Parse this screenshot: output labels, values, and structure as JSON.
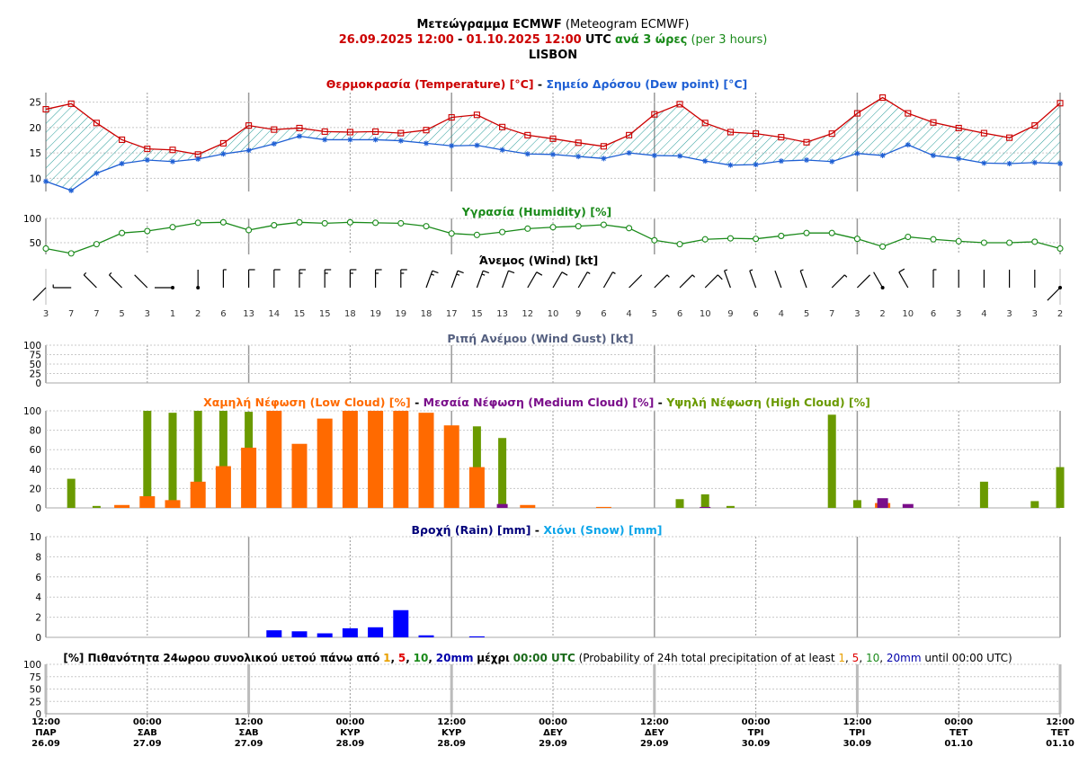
{
  "header": {
    "line1_bold": "Μετεώγραμμα ECMWF",
    "line1_rest": "(Meteogram ECMWF)",
    "period_start": "26.09.2025 12:00",
    "period_sep": "-",
    "period_end": "01.10.2025 12:00",
    "period_utc": "UTC",
    "period_every": "ανά 3 ώρες",
    "period_every_en": "(per 3 hours)",
    "location": "LISBON"
  },
  "colors": {
    "temperature": "#cc0000",
    "dew_point": "#1e5fd4",
    "humidity": "#1a8a1a",
    "low_cloud": "#ff6a00",
    "medium_cloud": "#7a0e8a",
    "high_cloud": "#6a9a00",
    "rain": "#0000ff",
    "snow": "#0ea5e9",
    "gust_title": "#556080",
    "grid_major": "#aaaaaa",
    "grid_minor": "#999999"
  },
  "panels": {
    "temperature": {
      "title_a": "Θερμοκρασία (Temperature) [°C]",
      "sep": "-",
      "title_b": "Σημείο Δρόσου (Dew point) [°C]",
      "yticks": [
        "25",
        "20",
        "15",
        "10"
      ]
    },
    "humidity": {
      "title": "Υγρασία (Humidity) [%]",
      "yticks": [
        "100",
        "50"
      ]
    },
    "wind": {
      "title": "Άνεμος (Wind) [kt]"
    },
    "gust": {
      "title": "Ριπή Ανέμου (Wind Gust) [kt]",
      "yticks": [
        "100",
        "75",
        "50",
        "25",
        "0"
      ]
    },
    "cloud": {
      "title_low": "Χαμηλή Νέφωση (Low Cloud) [%]",
      "title_med": "Μεσαία Νέφωση (Medium Cloud) [%]",
      "title_high": "Υψηλή Νέφωση (High Cloud) [%]",
      "sep": "-",
      "yticks": [
        "100",
        "80",
        "60",
        "40",
        "20",
        "0"
      ]
    },
    "precip": {
      "title_rain": "Βροχή (Rain) [mm]",
      "sep": "-",
      "title_snow": "Χιόνι (Snow) [mm]",
      "yticks": [
        "10",
        "8",
        "6",
        "4",
        "2",
        "0"
      ]
    },
    "prob": {
      "title_gr_a": "[%] Πιθανότητα 24ωρου συνολικού υετού πάνω από",
      "title_gr_b": "μέχρι",
      "title_gr_time": "00:00 UTC",
      "title_en_a": "(Probability of 24h total precipitation of at least",
      "title_en_b": "until 00:00 UTC)",
      "t1": "1",
      "t5": "5",
      "t10": "10",
      "t20": "20mm",
      "comma": ",",
      "yticks": [
        "100",
        "75",
        "50",
        "25",
        "0"
      ]
    }
  },
  "x_axis": {
    "times": [
      "12:00",
      "00:00",
      "12:00",
      "00:00",
      "12:00",
      "00:00",
      "12:00",
      "00:00",
      "12:00",
      "00:00",
      "12:00"
    ],
    "days": [
      "ΠΑΡ",
      "ΣΑΒ",
      "ΣΑΒ",
      "ΚΥΡ",
      "ΚΥΡ",
      "ΔΕΥ",
      "ΔΕΥ",
      "ΤΡΙ",
      "ΤΡΙ",
      "ΤΕΤ",
      "ΤΕΤ"
    ],
    "dates": [
      "26.09",
      "27.09",
      "27.09",
      "28.09",
      "28.09",
      "29.09",
      "29.09",
      "30.09",
      "30.09",
      "01.10",
      "01.10"
    ]
  },
  "chart_data": [
    {
      "type": "line",
      "title": "Θερμοκρασία (Temperature) [°C] - Σημείο Δρόσου (Dew point) [°C]",
      "x_step_hours": 3,
      "ylim": [
        8,
        26
      ],
      "series": [
        {
          "name": "Θερμοκρασία (Temperature) [°C]",
          "values": [
            23.6,
            24.7,
            20.9,
            17.6,
            15.8,
            15.6,
            14.7,
            16.9,
            20.4,
            19.6,
            19.9,
            19.2,
            19.1,
            19.2,
            18.9,
            19.5,
            22.0,
            22.5,
            20.1,
            18.5,
            17.8,
            17.0,
            16.3,
            18.5,
            22.6,
            24.6,
            20.9,
            19.1,
            18.8,
            18.1,
            17.1,
            18.8,
            22.8,
            25.9,
            22.8,
            21.0,
            19.9,
            18.9,
            18.0,
            20.4,
            24.8
          ]
        },
        {
          "name": "Σημείο Δρόσου (Dew point) [°C]",
          "values": [
            9.4,
            7.6,
            11.0,
            12.9,
            13.6,
            13.3,
            13.8,
            14.8,
            15.5,
            16.8,
            18.3,
            17.6,
            17.6,
            17.6,
            17.4,
            16.9,
            16.4,
            16.5,
            15.6,
            14.8,
            14.7,
            14.3,
            13.9,
            15.0,
            14.5,
            14.4,
            13.4,
            12.6,
            12.7,
            13.4,
            13.6,
            13.3,
            14.9,
            14.5,
            16.6,
            14.5,
            13.9,
            13.0,
            12.9,
            13.1,
            12.9
          ]
        }
      ]
    },
    {
      "type": "line",
      "title": "Υγρασία (Humidity) [%]",
      "ylim": [
        20,
        100
      ],
      "series": [
        {
          "name": "Υγρασία (Humidity) [%]",
          "values": [
            38,
            28,
            47,
            70,
            74,
            82,
            91,
            92,
            76,
            86,
            92,
            90,
            92,
            91,
            90,
            84,
            69,
            66,
            72,
            79,
            82,
            84,
            87,
            80,
            55,
            47,
            57,
            59,
            58,
            64,
            70,
            70,
            58,
            42,
            62,
            57,
            53,
            50,
            50,
            52,
            38
          ]
        }
      ]
    },
    {
      "type": "table",
      "title": "Άνεμος (Wind) [kt]",
      "speeds": [
        3,
        7,
        7,
        5,
        3,
        1,
        2,
        6,
        13,
        14,
        15,
        15,
        18,
        19,
        19,
        18,
        17,
        15,
        13,
        12,
        10,
        9,
        6,
        4,
        5,
        6,
        10,
        9,
        6,
        4,
        5,
        7,
        3,
        2,
        10,
        6,
        3,
        4,
        3,
        3,
        2
      ],
      "directions_deg": [
        225,
        270,
        315,
        315,
        315,
        270,
        0,
        0,
        0,
        0,
        0,
        0,
        0,
        0,
        0,
        20,
        20,
        20,
        20,
        30,
        30,
        30,
        30,
        45,
        45,
        45,
        45,
        340,
        340,
        340,
        340,
        45,
        45,
        330,
        330,
        0,
        0,
        0,
        0,
        0,
        225
      ]
    },
    {
      "type": "bar",
      "title": "Ριπή Ανέμου (Wind Gust) [kt]",
      "ylim": [
        0,
        100
      ],
      "values": []
    },
    {
      "type": "bar",
      "title": "Χαμηλή Νέφωση (Low Cloud) [%] - Μεσαία Νέφωση (Medium Cloud) [%] - Υψηλή Νέφωση (High Cloud) [%]",
      "ylim": [
        0,
        100
      ],
      "series": [
        {
          "name": "Χαμηλή Νέφωση (Low Cloud) [%]",
          "values": [
            0,
            0,
            0,
            3,
            12,
            8,
            27,
            43,
            62,
            100,
            66,
            92,
            100,
            100,
            100,
            98,
            85,
            42,
            0,
            3,
            0,
            0,
            1,
            0,
            0,
            0,
            0,
            0,
            0,
            0,
            0,
            0,
            0,
            5,
            0,
            0,
            0,
            0,
            0,
            0,
            0
          ]
        },
        {
          "name": "Μεσαία Νέφωση (Medium Cloud) [%]",
          "values": [
            0,
            0,
            0,
            0,
            0,
            0,
            0,
            0,
            0,
            0,
            0,
            0,
            0,
            0,
            0,
            0,
            0,
            0,
            4,
            0,
            0,
            0,
            0,
            0,
            0,
            0,
            1,
            0,
            0,
            0,
            0,
            0,
            0,
            10,
            4,
            0,
            0,
            0,
            0,
            0,
            0
          ]
        },
        {
          "name": "Υψηλή Νέφωση (High Cloud) [%]",
          "values": [
            0,
            30,
            2,
            0,
            100,
            98,
            100,
            100,
            99,
            0,
            0,
            0,
            0,
            0,
            0,
            0,
            0,
            84,
            72,
            0,
            0,
            0,
            0,
            0,
            0,
            9,
            14,
            2,
            0,
            0,
            0,
            96,
            8,
            0,
            0,
            0,
            0,
            27,
            0,
            7,
            42
          ]
        }
      ]
    },
    {
      "type": "bar",
      "title": "Βροχή (Rain) [mm] - Χιόνι (Snow) [mm]",
      "ylim": [
        0,
        10
      ],
      "series": [
        {
          "name": "Βροχή (Rain) [mm]",
          "values": [
            0,
            0,
            0,
            0,
            0,
            0,
            0,
            0,
            0,
            0.7,
            0.6,
            0.4,
            0.9,
            1.0,
            2.7,
            0.2,
            0,
            0.1,
            0,
            0,
            0,
            0,
            0,
            0,
            0,
            0,
            0,
            0,
            0,
            0,
            0,
            0,
            0,
            0,
            0,
            0,
            0,
            0,
            0,
            0,
            0
          ]
        },
        {
          "name": "Χιόνι (Snow) [mm]",
          "values": []
        }
      ]
    },
    {
      "type": "bar",
      "title": "[%] Πιθανότητα 24ωρου συνολικού υετού πάνω από 1, 5, 10, 20mm μέχρι 00:00 UTC",
      "ylim": [
        0,
        100
      ],
      "values": []
    }
  ]
}
